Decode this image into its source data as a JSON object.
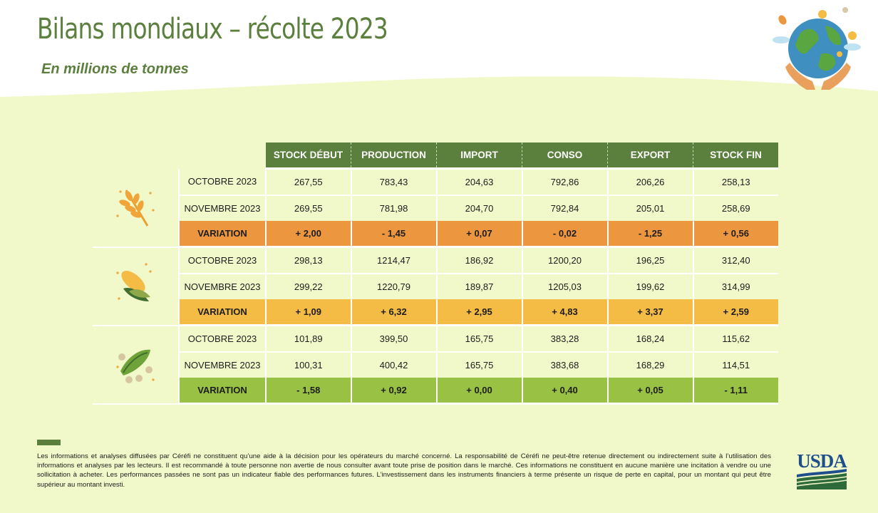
{
  "header": {
    "title": "Bilans mondiaux – récolte 2023",
    "subtitle": "En millions de tonnes"
  },
  "table": {
    "columns": [
      "STOCK DÉBUT",
      "PRODUCTION",
      "IMPORT",
      "CONSO",
      "EXPORT",
      "STOCK FIN"
    ],
    "groups": [
      {
        "icon": "wheat-icon",
        "accent": "#ed9640",
        "rows": [
          {
            "label": "OCTOBRE 2023",
            "values": [
              "267,55",
              "783,43",
              "204,63",
              "792,86",
              "206,26",
              "258,13"
            ]
          },
          {
            "label": "NOVEMBRE 2023",
            "values": [
              "269,55",
              "781,98",
              "204,70",
              "792,84",
              "205,01",
              "258,69"
            ]
          },
          {
            "label": "VARIATION",
            "values": [
              "+ 2,00",
              "- 1,45",
              "+ 0,07",
              "- 0,02",
              "- 1,25",
              "+ 0,56"
            ]
          }
        ]
      },
      {
        "icon": "corn-icon",
        "accent": "#f4bb45",
        "rows": [
          {
            "label": "OCTOBRE 2023",
            "values": [
              "298,13",
              "1214,47",
              "186,92",
              "1200,20",
              "196,25",
              "312,40"
            ]
          },
          {
            "label": "NOVEMBRE 2023",
            "values": [
              "299,22",
              "1220,79",
              "189,87",
              "1205,03",
              "199,62",
              "314,99"
            ]
          },
          {
            "label": "VARIATION",
            "values": [
              "+ 1,09",
              "+ 6,32",
              "+ 2,95",
              "+ 4,83",
              "+ 3,37",
              "+ 2,59"
            ]
          }
        ]
      },
      {
        "icon": "soybean-icon",
        "accent": "#99c144",
        "rows": [
          {
            "label": "OCTOBRE 2023",
            "values": [
              "101,89",
              "399,50",
              "165,75",
              "383,28",
              "168,24",
              "115,62"
            ]
          },
          {
            "label": "NOVEMBRE 2023",
            "values": [
              "100,31",
              "400,42",
              "165,75",
              "383,68",
              "168,29",
              "114,51"
            ]
          },
          {
            "label": "VARIATION",
            "values": [
              "- 1,58",
              "+ 0,92",
              "+ 0,00",
              "+ 0,40",
              "+ 0,05",
              "- 1,11"
            ]
          }
        ]
      }
    ]
  },
  "footer": {
    "disclaimer": "Les informations et analyses diffusées par Céréfi ne constituent qu’une aide à la décision pour les opérateurs du marché concerné. La responsabilité de Céréfi ne peut-être retenue directement ou indirectement suite à l’utilisation des informations et analyses par les lecteurs. Il est recommandé à toute personne non avertie de nous consulter avant toute prise de position dans le marché. Ces informations ne constituent en aucune manière une incitation à vendre ou une sollicitation à acheter. Les performances passées ne sont pas un indicateur fiable des performances futures. L’investissement dans les instruments financiers à terme présente un risque de perte en capital, pour un montant qui peut être supérieur au montant investi.",
    "logo_text": "USDA"
  },
  "colors": {
    "brand_green": "#5b7f3d",
    "background": "#f1f8c9",
    "usda_blue": "#1f4e8c"
  }
}
